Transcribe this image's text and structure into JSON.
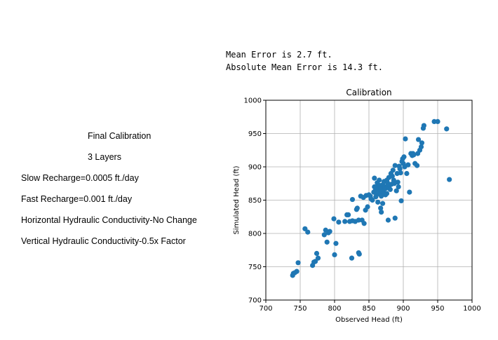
{
  "stats": {
    "mean_error": "Mean Error is 2.7 ft.",
    "absolute_mean_error": "Absolute Mean Error is 14.3 ft."
  },
  "notes": {
    "final_calibration": "Final Calibration",
    "layers": "3 Layers",
    "slow_recharge": "Slow Recharge=0.0005 ft./day",
    "fast_recharge": "Fast Recharge=0.001 ft./day",
    "horizontal_conductivity": "Horizontal Hydraulic Conductivity-No Change",
    "vertical_conductivity": "Vertical Hydraulic Conductivity-0.5x Factor"
  },
  "colors": {
    "marker": "#1f77b4",
    "grid": "#b0b0b0",
    "axis": "#000000"
  },
  "chart_data": {
    "type": "scatter",
    "title": "Calibration",
    "xlabel": "Observed Head (ft)",
    "ylabel": "Simulated Head (ft)",
    "xlim": [
      700,
      1000
    ],
    "ylim": [
      700,
      1000
    ],
    "xticks": [
      700,
      750,
      800,
      850,
      900,
      950,
      1000
    ],
    "yticks": [
      700,
      750,
      800,
      850,
      900,
      950,
      1000
    ],
    "grid": true,
    "points": [
      [
        739,
        737
      ],
      [
        740,
        740
      ],
      [
        742,
        741
      ],
      [
        745,
        743
      ],
      [
        747,
        756
      ],
      [
        757,
        807
      ],
      [
        761,
        802
      ],
      [
        768,
        752
      ],
      [
        770,
        757
      ],
      [
        772,
        758
      ],
      [
        774,
        770
      ],
      [
        776,
        763
      ],
      [
        785,
        798
      ],
      [
        787,
        805
      ],
      [
        789,
        787
      ],
      [
        791,
        801
      ],
      [
        793,
        803
      ],
      [
        799,
        822
      ],
      [
        800,
        768
      ],
      [
        802,
        785
      ],
      [
        806,
        817
      ],
      [
        815,
        818
      ],
      [
        818,
        828
      ],
      [
        820,
        828
      ],
      [
        822,
        818
      ],
      [
        825,
        763
      ],
      [
        826,
        819
      ],
      [
        826,
        851
      ],
      [
        830,
        818
      ],
      [
        832,
        836
      ],
      [
        833,
        838
      ],
      [
        835,
        771
      ],
      [
        836,
        769
      ],
      [
        835,
        820
      ],
      [
        838,
        856
      ],
      [
        840,
        820
      ],
      [
        842,
        854
      ],
      [
        843,
        815
      ],
      [
        845,
        835
      ],
      [
        846,
        857
      ],
      [
        848,
        840
      ],
      [
        850,
        858
      ],
      [
        852,
        856
      ],
      [
        853,
        852
      ],
      [
        855,
        850
      ],
      [
        857,
        862
      ],
      [
        858,
        870
      ],
      [
        858,
        883
      ],
      [
        859,
        864
      ],
      [
        860,
        855
      ],
      [
        861,
        858
      ],
      [
        862,
        870
      ],
      [
        862,
        876
      ],
      [
        863,
        847
      ],
      [
        864,
        866
      ],
      [
        865,
        860
      ],
      [
        865,
        880
      ],
      [
        866,
        872
      ],
      [
        867,
        838
      ],
      [
        867,
        868
      ],
      [
        868,
        832
      ],
      [
        868,
        856
      ],
      [
        869,
        864
      ],
      [
        870,
        873
      ],
      [
        870,
        845
      ],
      [
        871,
        862
      ],
      [
        872,
        878
      ],
      [
        872,
        866
      ],
      [
        873,
        870
      ],
      [
        874,
        858
      ],
      [
        875,
        868
      ],
      [
        876,
        880
      ],
      [
        876,
        860
      ],
      [
        877,
        876
      ],
      [
        878,
        820
      ],
      [
        878,
        870
      ],
      [
        879,
        884
      ],
      [
        880,
        872
      ],
      [
        881,
        866
      ],
      [
        882,
        890
      ],
      [
        883,
        874
      ],
      [
        884,
        886
      ],
      [
        885,
        895
      ],
      [
        886,
        880
      ],
      [
        887,
        875
      ],
      [
        888,
        823
      ],
      [
        888,
        902
      ],
      [
        890,
        864
      ],
      [
        891,
        890
      ],
      [
        892,
        877
      ],
      [
        893,
        870
      ],
      [
        894,
        901
      ],
      [
        895,
        897
      ],
      [
        896,
        891
      ],
      [
        897,
        849
      ],
      [
        898,
        908
      ],
      [
        899,
        912
      ],
      [
        900,
        905
      ],
      [
        901,
        915
      ],
      [
        902,
        900
      ],
      [
        903,
        942
      ],
      [
        905,
        890
      ],
      [
        907,
        903
      ],
      [
        909,
        862
      ],
      [
        911,
        920
      ],
      [
        913,
        917
      ],
      [
        914,
        920
      ],
      [
        915,
        918
      ],
      [
        917,
        905
      ],
      [
        920,
        902
      ],
      [
        921,
        920
      ],
      [
        922,
        941
      ],
      [
        924,
        925
      ],
      [
        926,
        930
      ],
      [
        927,
        936
      ],
      [
        929,
        958
      ],
      [
        930,
        962
      ],
      [
        945,
        968
      ],
      [
        950,
        968
      ],
      [
        963,
        957
      ],
      [
        967,
        881
      ]
    ]
  }
}
